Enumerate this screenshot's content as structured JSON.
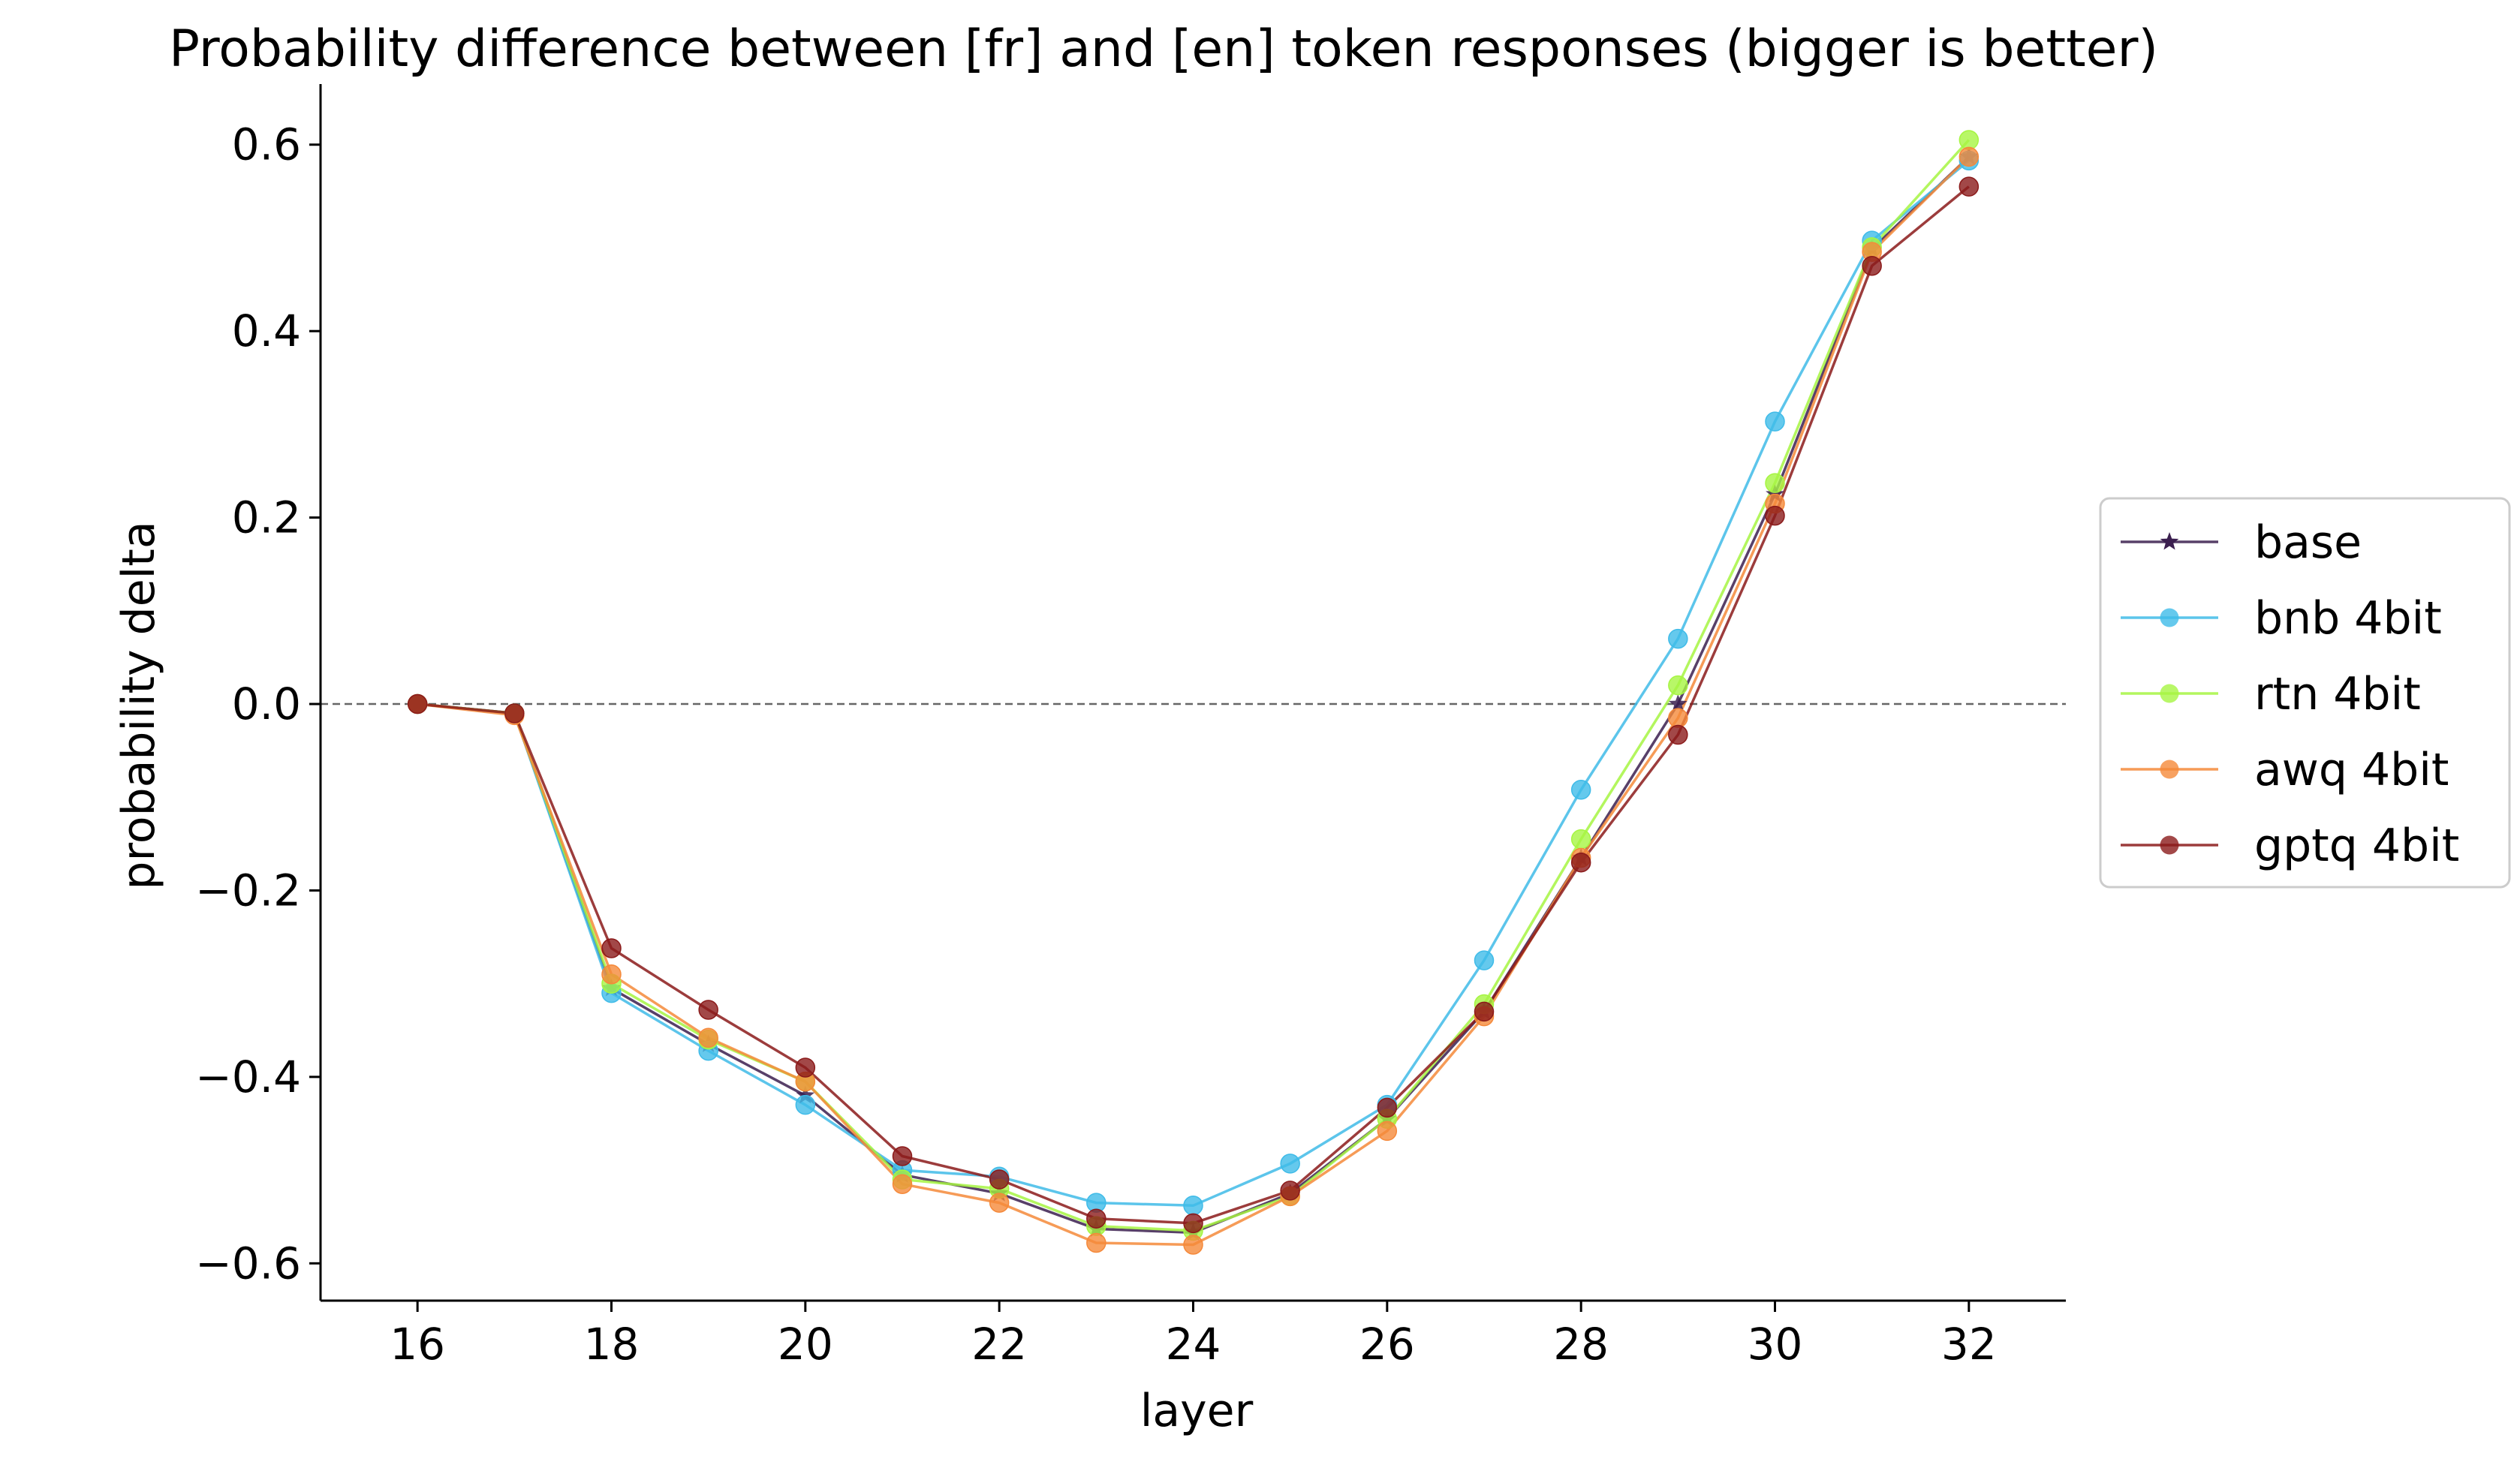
{
  "chart_data": {
    "type": "line",
    "title": "Probability difference between [fr] and [en] token responses (bigger is better)",
    "xlabel": "layer",
    "ylabel": "probability delta",
    "xlim": [
      15,
      33
    ],
    "ylim": [
      -0.64,
      0.665
    ],
    "xticks": [
      16,
      18,
      20,
      22,
      24,
      26,
      28,
      30,
      32
    ],
    "xtick_labels": [
      "16",
      "18",
      "20",
      "22",
      "24",
      "26",
      "28",
      "30",
      "32"
    ],
    "yticks": [
      -0.6,
      -0.4,
      -0.2,
      0.0,
      0.2,
      0.4,
      0.6
    ],
    "ytick_labels": [
      "−0.6",
      "−0.4",
      "−0.2",
      "0.0",
      "0.2",
      "0.4",
      "0.6"
    ],
    "reference_line": {
      "y": 0.0,
      "style": "dashed",
      "color": "#666666"
    },
    "grid": false,
    "legend_position": "center-right-outside",
    "x": [
      16,
      17,
      18,
      19,
      20,
      21,
      22,
      23,
      24,
      25,
      26,
      27,
      28,
      29,
      30,
      31,
      32
    ],
    "series": [
      {
        "name": "base",
        "marker": "star",
        "color": "#3b1f4f",
        "values": [
          0.0,
          -0.01,
          -0.305,
          -0.365,
          -0.42,
          -0.505,
          -0.525,
          -0.563,
          -0.567,
          -0.525,
          -0.445,
          -0.33,
          -0.165,
          0.0,
          0.225,
          0.488,
          0.587
        ]
      },
      {
        "name": "bnb 4bit",
        "marker": "circle",
        "color": "#3fbbe8",
        "values": [
          0.0,
          -0.01,
          -0.31,
          -0.372,
          -0.43,
          -0.5,
          -0.507,
          -0.535,
          -0.538,
          -0.493,
          -0.43,
          -0.275,
          -0.092,
          0.07,
          0.303,
          0.497,
          0.583
        ]
      },
      {
        "name": "rtn 4bit",
        "marker": "circle",
        "color": "#a6f542",
        "values": [
          0.0,
          -0.01,
          -0.3,
          -0.36,
          -0.405,
          -0.51,
          -0.52,
          -0.56,
          -0.565,
          -0.528,
          -0.445,
          -0.322,
          -0.145,
          0.02,
          0.237,
          0.49,
          0.605
        ]
      },
      {
        "name": "awq 4bit",
        "marker": "circle",
        "color": "#f5893a",
        "values": [
          0.0,
          -0.012,
          -0.29,
          -0.358,
          -0.405,
          -0.515,
          -0.535,
          -0.578,
          -0.58,
          -0.528,
          -0.458,
          -0.335,
          -0.165,
          -0.015,
          0.215,
          0.485,
          0.587
        ]
      },
      {
        "name": "gptq 4bit",
        "marker": "circle",
        "color": "#8b1a1a",
        "values": [
          0.0,
          -0.01,
          -0.262,
          -0.328,
          -0.39,
          -0.485,
          -0.51,
          -0.552,
          -0.557,
          -0.522,
          -0.433,
          -0.33,
          -0.17,
          -0.033,
          0.202,
          0.47,
          0.555
        ]
      }
    ]
  }
}
